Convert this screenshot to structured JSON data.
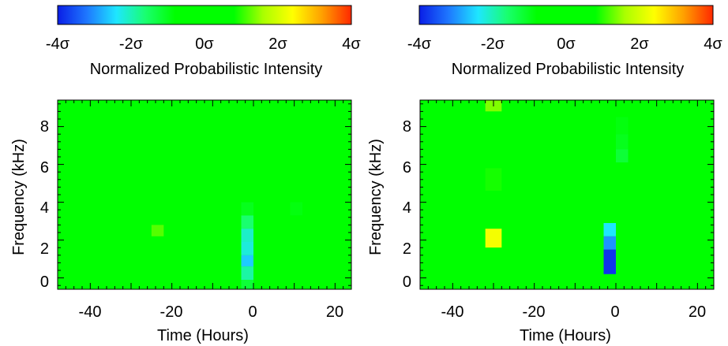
{
  "colors": {
    "colormap": [
      "#0a1ee6",
      "#1e78ff",
      "#1ee6ff",
      "#19ff6e",
      "#00ff00",
      "#00ff00",
      "#00ff00",
      "#aaff00",
      "#ffff00",
      "#ffa000",
      "#ff2800"
    ],
    "background": "#00ff00"
  },
  "colorbar": {
    "tick_labels": [
      "-4σ",
      "-2σ",
      "0σ",
      "2σ",
      "4σ"
    ],
    "ticks": [
      -4,
      -2,
      0,
      2,
      4
    ],
    "label": "Normalized Probabilistic Intensity",
    "range": [
      -4,
      4
    ]
  },
  "chart_data": [
    {
      "type": "heatmap",
      "title": "",
      "xlabel": "Time (Hours)",
      "ylabel": "Frequency (kHz)",
      "xlim": [
        -48,
        24
      ],
      "ylim": [
        -0.6,
        9.4
      ],
      "x_ticks": [
        -40,
        -20,
        0,
        20
      ],
      "y_ticks": [
        0,
        2,
        4,
        6,
        8
      ],
      "background_value": 0,
      "colorbar_range": [
        -4,
        4
      ],
      "cells": [
        {
          "t0": -40,
          "t1": -37,
          "f0": 8.1,
          "f1": 9.1,
          "v": 0.3
        },
        {
          "t0": -40,
          "t1": -37,
          "f0": 6.5,
          "f1": 7.3,
          "v": 0.2
        },
        {
          "t0": -40,
          "t1": -37,
          "f0": 5.7,
          "f1": 6.5,
          "v": 0.4
        },
        {
          "t0": -40,
          "t1": -37,
          "f0": 4.7,
          "f1": 5.7,
          "v": 0.7
        },
        {
          "t0": -25,
          "t1": -22,
          "f0": 2.2,
          "f1": 2.8,
          "v": 1.2
        },
        {
          "t0": -3,
          "t1": 0,
          "f0": 7.0,
          "f1": 7.6,
          "v": -0.1
        },
        {
          "t0": -3,
          "t1": 0,
          "f0": 6.2,
          "f1": 7.0,
          "v": -0.3
        },
        {
          "t0": -3,
          "t1": 0,
          "f0": 5.4,
          "f1": 6.2,
          "v": -0.6
        },
        {
          "t0": -3,
          "t1": 0,
          "f0": 4.7,
          "f1": 5.4,
          "v": -0.7
        },
        {
          "t0": -3,
          "t1": 0,
          "f0": 4.0,
          "f1": 4.7,
          "v": -0.8
        },
        {
          "t0": -3,
          "t1": 0,
          "f0": 3.3,
          "f1": 4.0,
          "v": -1.0
        },
        {
          "t0": -3,
          "t1": 0,
          "f0": 2.6,
          "f1": 3.3,
          "v": -1.6
        },
        {
          "t0": -3,
          "t1": 0,
          "f0": 1.9,
          "f1": 2.6,
          "v": -2.1
        },
        {
          "t0": -3,
          "t1": 0,
          "f0": 1.2,
          "f1": 1.9,
          "v": -2.2
        },
        {
          "t0": -3,
          "t1": 0,
          "f0": 0.6,
          "f1": 1.2,
          "v": -2.6
        },
        {
          "t0": -3,
          "t1": 0,
          "f0": -0.1,
          "f1": 0.6,
          "v": -1.9
        },
        {
          "t0": -3,
          "t1": 0,
          "f0": -0.6,
          "f1": -0.1,
          "v": -1.2
        },
        {
          "t0": 6,
          "t1": 12,
          "f0": 0.0,
          "f1": 0.8,
          "v": -0.3
        },
        {
          "t0": 9,
          "t1": 12,
          "f0": 4.0,
          "f1": 4.8,
          "v": -0.7
        },
        {
          "t0": 9,
          "t1": 12,
          "f0": 3.3,
          "f1": 4.0,
          "v": -0.9
        },
        {
          "t0": 9,
          "t1": 12,
          "f0": 2.8,
          "f1": 3.3,
          "v": -0.5
        }
      ]
    },
    {
      "type": "heatmap",
      "title": "",
      "xlabel": "Time (Hours)",
      "ylabel": "Frequency (kHz)",
      "xlim": [
        -48,
        24
      ],
      "ylim": [
        -0.6,
        9.4
      ],
      "x_ticks": [
        -40,
        -20,
        0,
        20
      ],
      "y_ticks": [
        0,
        2,
        4,
        6,
        8
      ],
      "background_value": 0,
      "colorbar_range": [
        -4,
        4
      ],
      "cells": [
        {
          "t0": -40,
          "t1": -37,
          "f0": 8.2,
          "f1": 9.0,
          "v": 0.6
        },
        {
          "t0": -40,
          "t1": -37,
          "f0": 7.2,
          "f1": 8.2,
          "v": 0.4
        },
        {
          "t0": -40,
          "t1": -37,
          "f0": 6.5,
          "f1": 7.2,
          "v": 0.5
        },
        {
          "t0": -40,
          "t1": -37,
          "f0": 5.7,
          "f1": 6.5,
          "v": 0.4
        },
        {
          "t0": -40,
          "t1": -37,
          "f0": 4.7,
          "f1": 5.7,
          "v": 0.3
        },
        {
          "t0": -32,
          "t1": -28,
          "f0": 8.8,
          "f1": 9.4,
          "v": 1.4
        },
        {
          "t0": -32,
          "t1": -28,
          "f0": 7.8,
          "f1": 8.8,
          "v": 0.2
        },
        {
          "t0": -32,
          "t1": -28,
          "f0": 6.9,
          "f1": 7.8,
          "v": 0.5
        },
        {
          "t0": -32,
          "t1": -28,
          "f0": 5.8,
          "f1": 6.9,
          "v": 0.8
        },
        {
          "t0": -32,
          "t1": -28,
          "f0": 4.6,
          "f1": 5.8,
          "v": 0.9
        },
        {
          "t0": -32,
          "t1": -28,
          "f0": 3.6,
          "f1": 4.6,
          "v": 0.8
        },
        {
          "t0": -32,
          "t1": -28,
          "f0": 2.6,
          "f1": 3.6,
          "v": 0.6
        },
        {
          "t0": -32,
          "t1": -28,
          "f0": 1.6,
          "f1": 2.6,
          "v": 2.3
        },
        {
          "t0": -32,
          "t1": -28,
          "f0": 1.0,
          "f1": 1.6,
          "v": 0.4
        },
        {
          "t0": -3,
          "t1": 0,
          "f0": 2.9,
          "f1": 3.4,
          "v": -0.6
        },
        {
          "t0": -3,
          "t1": 0,
          "f0": 2.2,
          "f1": 2.9,
          "v": -2.4
        },
        {
          "t0": -3,
          "t1": 0,
          "f0": 1.5,
          "f1": 2.2,
          "v": -3.0
        },
        {
          "t0": -3,
          "t1": 0,
          "f0": 0.2,
          "f1": 1.5,
          "v": -3.8
        },
        {
          "t0": 0,
          "t1": 3,
          "f0": 8.5,
          "f1": 9.4,
          "v": -0.3
        },
        {
          "t0": 0,
          "t1": 3,
          "f0": 7.6,
          "f1": 8.5,
          "v": -0.9
        },
        {
          "t0": 0,
          "t1": 3,
          "f0": 6.8,
          "f1": 7.6,
          "v": -1.0
        },
        {
          "t0": 0,
          "t1": 3,
          "f0": 6.1,
          "f1": 6.8,
          "v": -1.2
        },
        {
          "t0": 0,
          "t1": 3,
          "f0": 5.4,
          "f1": 6.1,
          "v": -0.6
        },
        {
          "t0": 0,
          "t1": 3,
          "f0": 4.9,
          "f1": 5.4,
          "v": -0.3
        },
        {
          "t0": 21,
          "t1": 24,
          "f0": 4.2,
          "f1": 4.8,
          "v": -0.3
        },
        {
          "t0": 21,
          "t1": 24,
          "f0": 1.2,
          "f1": 2.3,
          "v": -0.5
        }
      ]
    }
  ]
}
